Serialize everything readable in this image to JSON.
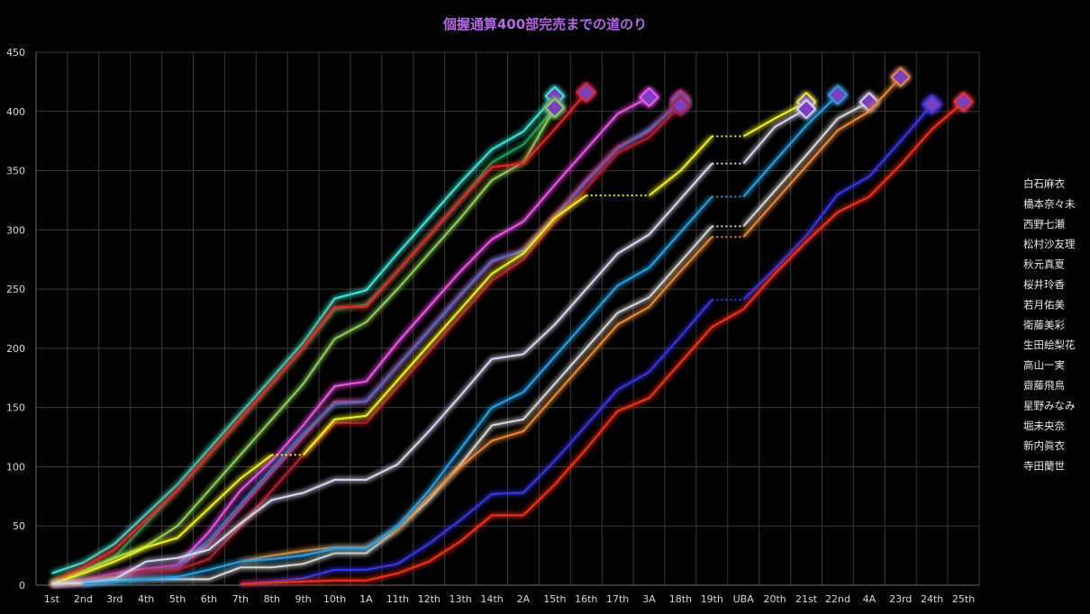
{
  "chart_data": {
    "type": "line",
    "title": "個握通算400部完売までの道のり",
    "xlabel": "",
    "ylabel": "",
    "ylim": [
      0,
      450
    ],
    "yticks": [
      0,
      50,
      100,
      150,
      200,
      250,
      300,
      350,
      400,
      450
    ],
    "grid": true,
    "legend_position": "right",
    "categories": [
      "1st",
      "2nd",
      "3rd",
      "4th",
      "5th",
      "6th",
      "7th",
      "8th",
      "9th",
      "10th",
      "1A",
      "11th",
      "12th",
      "13th",
      "14th",
      "2A",
      "15th",
      "16th",
      "17th",
      "3A",
      "18th",
      "19th",
      "UBA",
      "20th",
      "21st",
      "22nd",
      "4A",
      "23rd",
      "24th",
      "25th"
    ],
    "series": [
      {
        "name": "白石麻衣",
        "color": "#3fe6d8",
        "values": [
          10,
          19,
          35,
          60,
          85,
          115,
          145,
          175,
          205,
          242,
          249,
          280,
          310,
          340,
          368,
          383,
          413,
          null,
          null,
          null,
          null,
          null,
          null,
          null,
          null,
          null,
          null,
          null,
          null,
          null
        ]
      },
      {
        "name": "橋本奈々未",
        "color": "#1fa060",
        "values": [
          2,
          12,
          24,
          52,
          80,
          110,
          140,
          170,
          200,
          233,
          237,
          265,
          295,
          325,
          357,
          372,
          403,
          null,
          null,
          null,
          null,
          null,
          null,
          null,
          null,
          null,
          null,
          null,
          null,
          null
        ]
      },
      {
        "name": "西野七瀬",
        "color": "#8fcf5a",
        "values": [
          2,
          12,
          23,
          33,
          50,
          80,
          110,
          140,
          170,
          208,
          222,
          250,
          280,
          310,
          342,
          357,
          403,
          null,
          null,
          null,
          null,
          null,
          null,
          null,
          null,
          null,
          null,
          null,
          null,
          null
        ]
      },
      {
        "name": "松村沙友理",
        "color": "#e02a2a",
        "values": [
          2,
          15,
          30,
          55,
          80,
          110,
          140,
          170,
          200,
          235,
          235,
          265,
          295,
          325,
          353,
          356,
          385,
          416,
          null,
          null,
          null,
          null,
          null,
          null,
          null,
          null,
          null,
          null,
          null,
          null
        ]
      },
      {
        "name": "秋元真夏",
        "color": "#ee55e8",
        "values": [
          1,
          4,
          10,
          14,
          17,
          45,
          80,
          105,
          135,
          168,
          172,
          205,
          235,
          265,
          292,
          307,
          338,
          368,
          398,
          412,
          null,
          null,
          null,
          null,
          null,
          null,
          null,
          null,
          null,
          null
        ]
      },
      {
        "name": "桜井玲香",
        "color": "#e0306a",
        "values": [
          1,
          3,
          8,
          12,
          14,
          35,
          65,
          95,
          125,
          155,
          155,
          185,
          215,
          245,
          273,
          283,
          312,
          342,
          370,
          383,
          410,
          null,
          null,
          null,
          null,
          null,
          null,
          null,
          null,
          null
        ]
      },
      {
        "name": "若月佑美",
        "color": "#4a70c0",
        "values": [
          1,
          3,
          8,
          12,
          15,
          38,
          68,
          98,
          128,
          153,
          155,
          185,
          215,
          245,
          274,
          282,
          310,
          340,
          368,
          385,
          407,
          null,
          null,
          null,
          null,
          null,
          null,
          null,
          null,
          null
        ]
      },
      {
        "name": "衛藤美彩",
        "color": "#b02030",
        "values": [
          1,
          3,
          8,
          12,
          13,
          22,
          50,
          80,
          110,
          137,
          137,
          167,
          197,
          227,
          257,
          275,
          307,
          335,
          365,
          378,
          405,
          null,
          null,
          null,
          null,
          null,
          null,
          null,
          null,
          null
        ]
      },
      {
        "name": "生田絵梨花",
        "color": "#f0f020",
        "values": [
          1,
          10,
          20,
          32,
          40,
          65,
          90,
          110,
          110,
          140,
          143,
          173,
          203,
          233,
          263,
          280,
          310,
          329,
          329,
          329,
          350,
          379,
          379,
          394,
          408,
          null,
          null,
          null,
          null,
          null
        ]
      },
      {
        "name": "高山一実",
        "color": "#d8d8f0",
        "values": [
          1,
          2,
          5,
          20,
          23,
          30,
          52,
          72,
          78,
          89,
          89,
          102,
          130,
          160,
          191,
          195,
          220,
          250,
          280,
          296,
          326,
          356,
          356,
          387,
          402,
          null,
          null,
          null,
          null,
          null
        ]
      },
      {
        "name": "齋藤飛鳥",
        "color": "#2a9ee0",
        "values": [
          null,
          null,
          null,
          null,
          null,
          null,
          null,
          null,
          null,
          null,
          null,
          null,
          null,
          null,
          null,
          null,
          null,
          null,
          null,
          null,
          null,
          null,
          null,
          null,
          null,
          null,
          null,
          null,
          null,
          null
        ]
      },
      {
        "name": "星野みなみ",
        "color": "#d8d8d8",
        "values": [
          1,
          2,
          4,
          5,
          5,
          5,
          15,
          15,
          18,
          27,
          27,
          47,
          72,
          102,
          135,
          140,
          170,
          200,
          230,
          243,
          273,
          303,
          303,
          333,
          363,
          394,
          408,
          null,
          null,
          null
        ]
      },
      {
        "name": "堀未央奈",
        "color": "#e88838",
        "values": [
          null,
          null,
          null,
          null,
          null,
          null,
          20,
          25,
          29,
          32,
          32,
          47,
          75,
          100,
          122,
          130,
          160,
          190,
          220,
          235,
          265,
          294,
          294,
          324,
          354,
          384,
          400,
          429,
          null,
          null
        ]
      },
      {
        "name": "新内眞衣",
        "color": "#3838e0",
        "values": [
          null,
          null,
          null,
          null,
          null,
          null,
          1,
          3,
          6,
          13,
          13,
          18,
          35,
          55,
          77,
          78,
          105,
          135,
          165,
          180,
          210,
          241,
          241,
          267,
          295,
          330,
          345,
          375,
          406,
          null
        ]
      },
      {
        "name": "寺田蘭世",
        "color": "#f03218",
        "values": [
          null,
          null,
          null,
          null,
          null,
          null,
          1,
          2,
          3,
          4,
          4,
          10,
          20,
          37,
          59,
          59,
          85,
          115,
          147,
          158,
          188,
          218,
          233,
          263,
          290,
          315,
          328,
          355,
          385,
          408
        ]
      }
    ],
    "extra_lines": [
      {
        "series": "齋藤飛鳥",
        "color": "#2a9ee0",
        "values": [
          null,
          1,
          3,
          5,
          7,
          13,
          20,
          22,
          25,
          31,
          31,
          50,
          80,
          115,
          150,
          163,
          193,
          223,
          253,
          268,
          298,
          328,
          328,
          358,
          388,
          414,
          null,
          null,
          null,
          null
        ]
      }
    ]
  }
}
